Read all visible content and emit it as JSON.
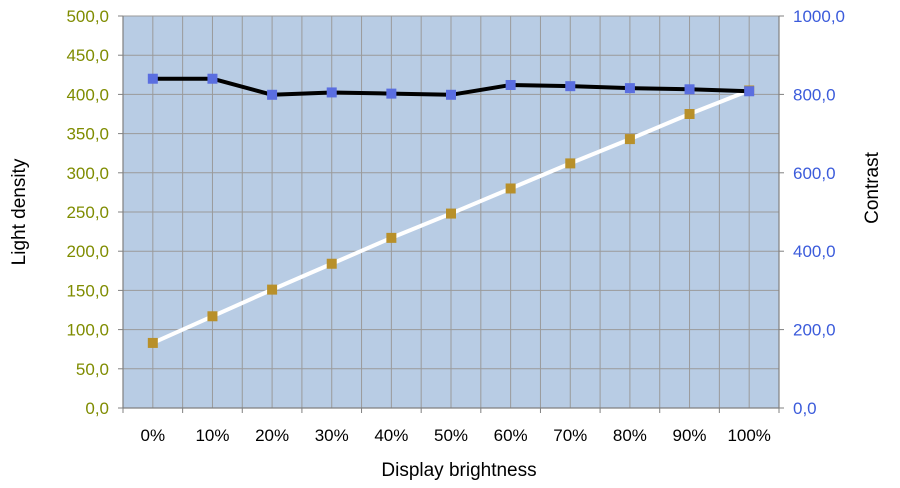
{
  "chart_data": {
    "type": "line",
    "title": "",
    "xlabel": "Display brightness",
    "ylabel_left": "Light density",
    "ylabel_right": "Contrast",
    "categories": [
      "0%",
      "10%",
      "20%",
      "30%",
      "40%",
      "50%",
      "60%",
      "70%",
      "80%",
      "90%",
      "100%"
    ],
    "y_left": {
      "lim": [
        0,
        500
      ],
      "ticks": [
        "0,0",
        "50,0",
        "100,0",
        "150,0",
        "200,0",
        "250,0",
        "300,0",
        "350,0",
        "400,0",
        "450,0",
        "500,0"
      ],
      "tick_values": [
        0,
        50,
        100,
        150,
        200,
        250,
        300,
        350,
        400,
        450,
        500
      ]
    },
    "y_right": {
      "lim": [
        0,
        1000
      ],
      "ticks": [
        "0,0",
        "200,0",
        "400,0",
        "600,0",
        "800,0",
        "1000,0"
      ],
      "tick_values": [
        0,
        200,
        400,
        600,
        800,
        1000
      ]
    },
    "series": [
      {
        "axis": "left",
        "line_color": "#ffffff",
        "marker_color": "#b8902a",
        "values": [
          83,
          117,
          151,
          184,
          217,
          248,
          280,
          312,
          343,
          375,
          405
        ]
      },
      {
        "axis": "right",
        "line_color": "#000000",
        "marker_color": "#5a6ee0",
        "values": [
          840,
          840,
          799,
          805,
          802,
          799,
          824,
          821,
          816,
          813,
          808
        ]
      }
    ],
    "grid": true,
    "colors": {
      "plot_background": "#b8cce4",
      "grid": "#9a9a9a",
      "left_axis_text": "#7f8c00",
      "right_axis_text": "#3b5bdb"
    }
  }
}
